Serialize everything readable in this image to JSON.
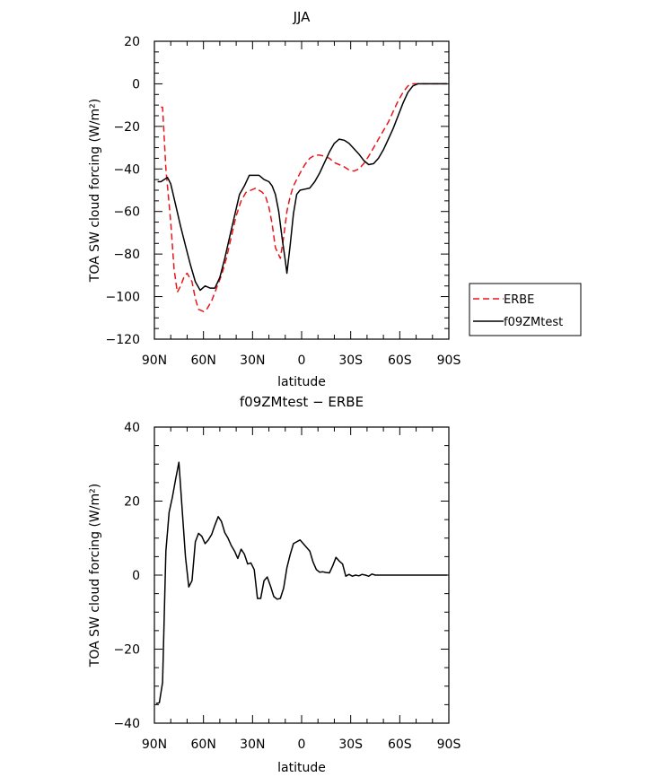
{
  "chart_data": [
    {
      "type": "line",
      "title": "JJA",
      "xlabel": "latitude",
      "ylabel": "TOA SW cloud forcing (W/m²)",
      "xlim": [
        90,
        -90
      ],
      "ylim": [
        -120,
        20
      ],
      "xticks": [
        {
          "value": 90,
          "label": "90N"
        },
        {
          "value": 60,
          "label": "60N"
        },
        {
          "value": 30,
          "label": "30N"
        },
        {
          "value": 0,
          "label": "0"
        },
        {
          "value": -30,
          "label": "30S"
        },
        {
          "value": -60,
          "label": "60S"
        },
        {
          "value": -90,
          "label": "90S"
        }
      ],
      "yticks": [
        {
          "value": 20,
          "label": "20"
        },
        {
          "value": 0,
          "label": "0"
        },
        {
          "value": -20,
          "label": "−20"
        },
        {
          "value": -40,
          "label": "−40"
        },
        {
          "value": -60,
          "label": "−60"
        },
        {
          "value": -80,
          "label": "−80"
        },
        {
          "value": -100,
          "label": "−100"
        },
        {
          "value": -120,
          "label": "−120"
        }
      ],
      "legend": "right",
      "series": [
        {
          "name": "ERBE",
          "color": "#e8161b",
          "dash": "dashed",
          "x": [
            86,
            85,
            83,
            80,
            78,
            76,
            74,
            72,
            70,
            67,
            65,
            63,
            60,
            58,
            55,
            52,
            49,
            46,
            43,
            40,
            37,
            34,
            31,
            28,
            26,
            24,
            22,
            20,
            18,
            16,
            13,
            11,
            9,
            7,
            5,
            3,
            1,
            -2,
            -5,
            -8,
            -11,
            -14,
            -17,
            -20,
            -23,
            -26,
            -29,
            -32,
            -35,
            -38,
            -41,
            -44,
            -47,
            -50,
            -53,
            -56,
            -59,
            -62,
            -65,
            -68,
            -71,
            -74,
            -78,
            -82,
            -86,
            -89
          ],
          "y": [
            -11,
            -11,
            -40,
            -65,
            -87,
            -98,
            -95,
            -91,
            -89,
            -93,
            -101,
            -106,
            -107,
            -106,
            -102,
            -96,
            -90,
            -82,
            -72,
            -62,
            -55,
            -51,
            -50,
            -49,
            -50,
            -51,
            -53,
            -58,
            -66,
            -77,
            -82,
            -72,
            -60,
            -53,
            -48,
            -45,
            -42,
            -38,
            -35,
            -33.5,
            -33.5,
            -34,
            -35,
            -37,
            -38,
            -39,
            -40.5,
            -41,
            -40,
            -37.5,
            -34,
            -30,
            -26,
            -22,
            -18,
            -13,
            -8,
            -4,
            -1,
            0,
            0,
            0,
            0,
            0,
            0,
            0
          ]
        },
        {
          "name": "f09ZMtest",
          "color": "#000000",
          "dash": "solid",
          "x": [
            88,
            86,
            84,
            82,
            80,
            77,
            74,
            71,
            68,
            65,
            62,
            59,
            56,
            53,
            50,
            47,
            44,
            41,
            38,
            35,
            32,
            29,
            26,
            23,
            20,
            18,
            16,
            14,
            12,
            10,
            9,
            7,
            5,
            3,
            1,
            -2,
            -5,
            -8,
            -11,
            -14,
            -17,
            -20,
            -23,
            -26,
            -29,
            -32,
            -35,
            -38,
            -41,
            -44,
            -47,
            -50,
            -53,
            -56,
            -59,
            -62,
            -65,
            -68,
            -71,
            -75,
            -80,
            -85,
            -89
          ],
          "y": [
            -46,
            -46,
            -45,
            -44,
            -47,
            -57,
            -67,
            -76,
            -85,
            -93,
            -97,
            -95,
            -96,
            -96,
            -91,
            -82,
            -72,
            -62,
            -52,
            -48,
            -43,
            -43,
            -43,
            -45,
            -46,
            -48,
            -52,
            -60,
            -72,
            -83,
            -89,
            -76,
            -61,
            -52,
            -50,
            -49.5,
            -49,
            -46,
            -42,
            -37,
            -32,
            -28,
            -26,
            -26.5,
            -28,
            -30.5,
            -33,
            -36,
            -38,
            -37.5,
            -35,
            -31,
            -26,
            -21,
            -15,
            -9,
            -4,
            -1,
            0,
            0,
            0,
            0,
            0
          ]
        }
      ]
    },
    {
      "type": "line",
      "title": "f09ZMtest − ERBE",
      "xlabel": "latitude",
      "ylabel": "TOA SW cloud forcing (W/m²)",
      "xlim": [
        90,
        -90
      ],
      "ylim": [
        -40,
        40
      ],
      "xticks": [
        {
          "value": 90,
          "label": "90N"
        },
        {
          "value": 60,
          "label": "60N"
        },
        {
          "value": 30,
          "label": "30N"
        },
        {
          "value": 0,
          "label": "0"
        },
        {
          "value": -30,
          "label": "30S"
        },
        {
          "value": -60,
          "label": "60S"
        },
        {
          "value": -90,
          "label": "90S"
        }
      ],
      "yticks": [
        {
          "value": 40,
          "label": "40"
        },
        {
          "value": 20,
          "label": "20"
        },
        {
          "value": 0,
          "label": "0"
        },
        {
          "value": -20,
          "label": "−20"
        },
        {
          "value": -40,
          "label": "−40"
        }
      ],
      "series": [
        {
          "color": "#000000",
          "dash": "solid",
          "x": [
            89,
            87,
            85,
            83,
            81,
            79,
            77,
            75,
            73,
            71,
            69,
            67,
            65,
            63,
            61,
            59,
            57,
            55,
            53,
            51,
            49,
            47,
            45,
            43,
            41,
            39,
            37,
            35,
            33,
            31,
            29,
            27,
            25,
            23,
            21,
            19,
            17,
            15,
            13,
            11,
            9,
            7,
            5,
            3,
            1,
            -1,
            -3,
            -5,
            -7,
            -9,
            -11,
            -13,
            -15,
            -17,
            -19,
            -21,
            -23,
            -25,
            -27,
            -29,
            -31,
            -33,
            -35,
            -37,
            -39,
            -41,
            -43,
            -45,
            -47,
            -49,
            -51,
            -53,
            -55,
            -57,
            -59,
            -61,
            -63,
            -65,
            -67,
            -69,
            -71,
            -73,
            -75,
            -77,
            -79,
            -81,
            -83,
            -85,
            -87,
            -89
          ],
          "y": [
            -34.7,
            -34.5,
            -29,
            6.5,
            17,
            21,
            26,
            30.5,
            17.5,
            5,
            -3.2,
            -1.5,
            9,
            11.3,
            10.5,
            8.5,
            9.5,
            11,
            13.5,
            15.8,
            14.5,
            11.5,
            10,
            8,
            6.5,
            4.5,
            7,
            5.7,
            3,
            3.3,
            1.5,
            -6.3,
            -6.3,
            -1.5,
            -0.5,
            -3,
            -5.8,
            -6.5,
            -6.3,
            -3.5,
            2,
            5.5,
            8.5,
            9,
            9.5,
            8.5,
            7.5,
            6.5,
            3.5,
            1.5,
            0.8,
            0.9,
            0.7,
            0.6,
            2.5,
            4.8,
            3.8,
            3,
            -0.3,
            0.2,
            -0.3,
            0,
            -0.2,
            0.2,
            0,
            -0.3,
            0.3,
            0,
            0,
            0,
            0,
            0,
            0,
            0,
            0,
            0,
            0,
            0,
            0,
            0,
            0,
            0,
            0,
            0,
            0,
            0,
            0,
            0,
            0,
            0
          ]
        }
      ]
    }
  ]
}
